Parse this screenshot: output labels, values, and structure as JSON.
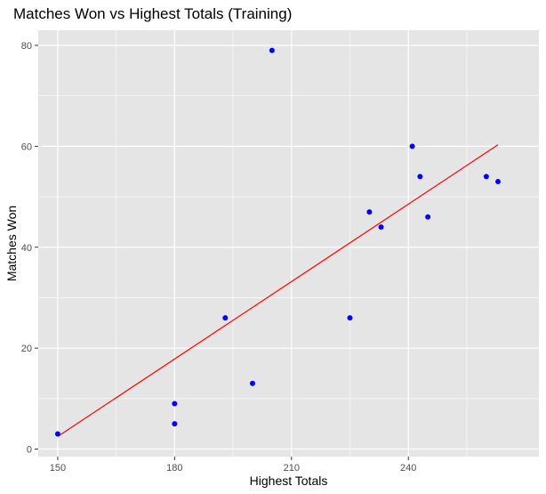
{
  "chart_data": {
    "type": "scatter",
    "title": "Matches Won vs Highest Totals (Training)",
    "xlabel": "Highest Totals",
    "ylabel": "Matches Won",
    "xlim": [
      145,
      273.5
    ],
    "ylim": [
      -1.5,
      83
    ],
    "x_ticks": [
      150,
      180,
      210,
      240
    ],
    "x_tick_labels": [
      "150",
      "180",
      "210",
      "240"
    ],
    "y_ticks": [
      0,
      20,
      40,
      60,
      80
    ],
    "y_tick_labels": [
      "0",
      "20",
      "40",
      "60",
      "80"
    ],
    "grid": true,
    "legend": "none",
    "colors": {
      "panel": "#e5e5e5",
      "grid": "#ffffff",
      "point": "#0000ff",
      "fit_line": "#ff0000",
      "tick": "#333333"
    },
    "points": [
      {
        "x": 150,
        "y": 3
      },
      {
        "x": 180,
        "y": 9
      },
      {
        "x": 180,
        "y": 5
      },
      {
        "x": 193,
        "y": 26
      },
      {
        "x": 200,
        "y": 13
      },
      {
        "x": 205,
        "y": 79
      },
      {
        "x": 225,
        "y": 26
      },
      {
        "x": 230,
        "y": 47
      },
      {
        "x": 233,
        "y": 44
      },
      {
        "x": 241,
        "y": 60
      },
      {
        "x": 243,
        "y": 54
      },
      {
        "x": 245,
        "y": 46
      },
      {
        "x": 260,
        "y": 54
      },
      {
        "x": 263,
        "y": 53
      }
    ],
    "fit_line": {
      "x": [
        150,
        263
      ],
      "y": [
        2.5,
        60.3
      ]
    }
  }
}
